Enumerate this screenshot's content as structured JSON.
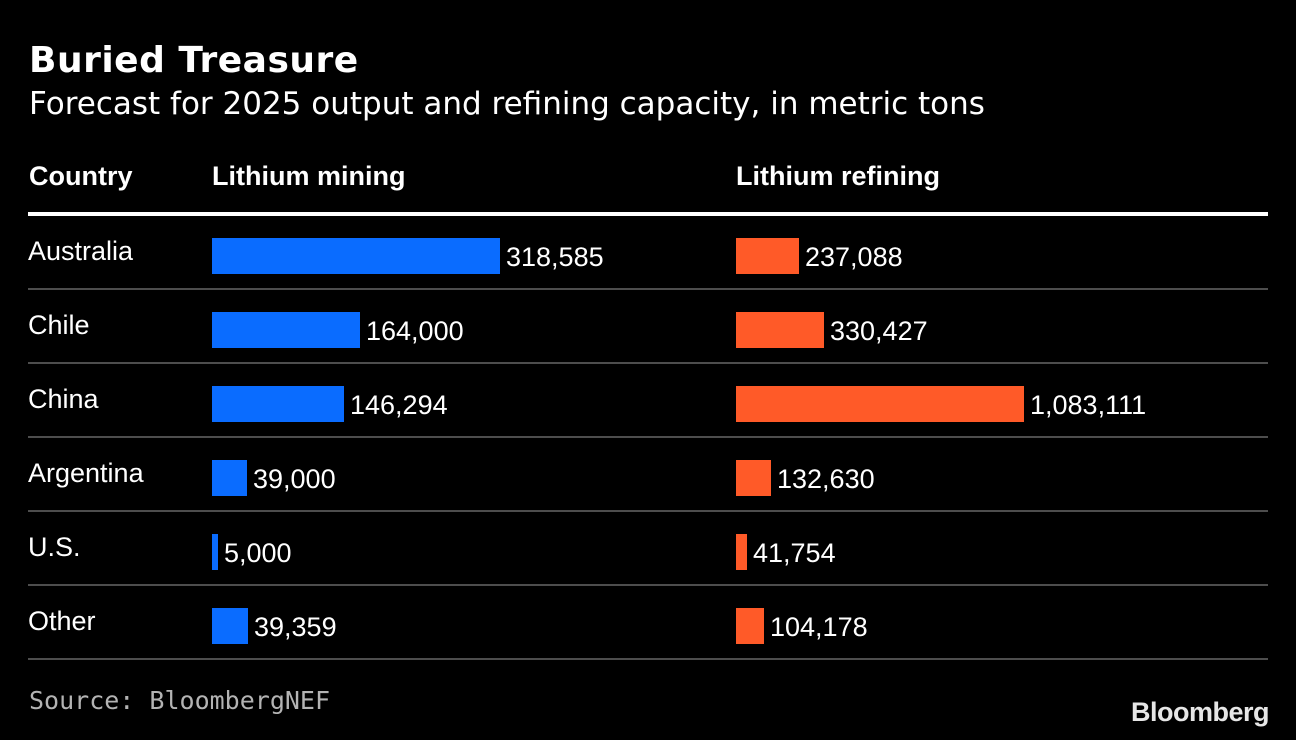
{
  "title": "Buried Treasure",
  "subtitle": "Forecast for 2025 output and refining capacity, in metric tons",
  "source": "Source: BloombergNEF",
  "brand": "Bloomberg",
  "colors": {
    "background": "#000000",
    "mining": "#0a6cff",
    "refining": "#ff5a28",
    "divider": "#4d4d4d"
  },
  "chart_data": {
    "type": "bar",
    "orientation": "horizontal",
    "title": "Buried Treasure",
    "subtitle": "Forecast for 2025 output and refining capacity, in metric tons",
    "unit": "metric tons",
    "category_header": "Country",
    "categories": [
      "Australia",
      "Chile",
      "China",
      "Argentina",
      "U.S.",
      "Other"
    ],
    "series": [
      {
        "name": "Lithium mining",
        "color": "#0a6cff",
        "values": [
          318585,
          164000,
          146294,
          39000,
          5000,
          39359
        ],
        "labels": [
          "318,585",
          "164,000",
          "146,294",
          "39,000",
          "5,000",
          "39,359"
        ]
      },
      {
        "name": "Lithium refining",
        "color": "#ff5a28",
        "values": [
          237088,
          330427,
          1083111,
          132630,
          41754,
          104178
        ],
        "labels": [
          "237,088",
          "330,427",
          "1,083,111",
          "132,630",
          "41,754",
          "104,178"
        ]
      }
    ],
    "source": "Source: BloombergNEF"
  }
}
